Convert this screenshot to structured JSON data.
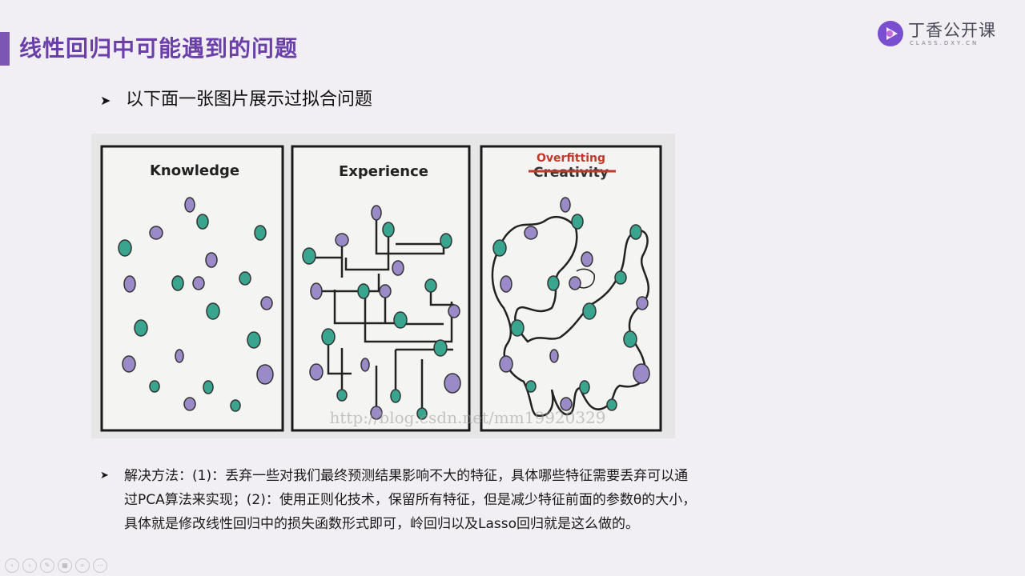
{
  "slide": {
    "title": "线性回归中可能遇到的问题",
    "bullet1": "以下面一张图片展示过拟合问题",
    "bullet2_lines": [
      "解决方法：(1)：丢弃一些对我们最终预测结果影响不大的特征，具体哪些特征需要丢弃可以通",
      "过PCA算法来实现；(2)：使用正则化技术，保留所有特征，但是减少特征前面的参数θ的大小，",
      "具体就是修改线性回归中的损失函数形式即可，岭回归以及Lasso回归就是这么做的。"
    ]
  },
  "logo": {
    "name": "丁香公开课",
    "sub": "CLASS.DXY.CN"
  },
  "figure": {
    "panels": [
      {
        "label": "Knowledge"
      },
      {
        "label": "Experience"
      },
      {
        "label": "Overfitting",
        "struck_label": "Creativity"
      }
    ],
    "watermark": "http://blog.csdn.net/mm19920329"
  },
  "colors": {
    "accent": "#6a3fa8",
    "teal": "#3aa58e",
    "purple": "#9b8ac8"
  },
  "toolbar": {
    "buttons": [
      {
        "icon": "prev-icon",
        "glyph": "‹"
      },
      {
        "icon": "next-icon",
        "glyph": "›"
      },
      {
        "icon": "pen-icon",
        "glyph": "✎"
      },
      {
        "icon": "slides-icon",
        "glyph": "▦"
      },
      {
        "icon": "zoom-icon",
        "glyph": "⌕"
      },
      {
        "icon": "more-icon",
        "glyph": "⋯"
      }
    ]
  }
}
